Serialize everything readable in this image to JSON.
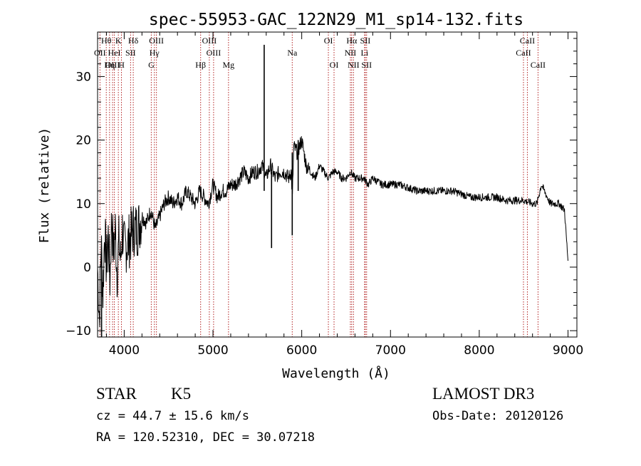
{
  "chart_data": {
    "type": "line",
    "title": "spec-55953-GAC_122N29_M1_sp14-132.fits",
    "xlabel": "Wavelength (Å)",
    "ylabel": "Flux (relative)",
    "xlim": [
      3700,
      9100
    ],
    "ylim": [
      -11,
      37
    ],
    "xticks": [
      4000,
      5000,
      6000,
      7000,
      8000,
      9000
    ],
    "yticks": [
      -10,
      0,
      10,
      20,
      30
    ],
    "grid": false,
    "series": [
      {
        "name": "flux",
        "x": [
          3700,
          3720,
          3740,
          3760,
          3780,
          3800,
          3820,
          3840,
          3860,
          3880,
          3900,
          3920,
          3940,
          3960,
          3980,
          4000,
          4050,
          4100,
          4150,
          4200,
          4250,
          4300,
          4350,
          4400,
          4450,
          4500,
          4550,
          4600,
          4650,
          4700,
          4750,
          4800,
          4850,
          4900,
          4950,
          5000,
          5050,
          5100,
          5150,
          5200,
          5250,
          5300,
          5350,
          5400,
          5450,
          5500,
          5550,
          5580,
          5600,
          5620,
          5650,
          5700,
          5750,
          5800,
          5850,
          5880,
          5895,
          5910,
          5950,
          6000,
          6050,
          6100,
          6150,
          6200,
          6250,
          6300,
          6350,
          6400,
          6450,
          6500,
          6550,
          6600,
          6650,
          6700,
          6750,
          6800,
          6900,
          7000,
          7100,
          7200,
          7300,
          7400,
          7500,
          7600,
          7700,
          7800,
          7900,
          8000,
          8100,
          8200,
          8300,
          8400,
          8500,
          8600,
          8650,
          8700,
          8800,
          8900,
          8960,
          9000
        ],
        "values": [
          0,
          -8,
          4,
          -4,
          6,
          0,
          5,
          -2,
          8,
          2,
          6,
          -1,
          4,
          1,
          6,
          3,
          4,
          6,
          6,
          8,
          7,
          9,
          6,
          8,
          10,
          11,
          10,
          11,
          10,
          12,
          11,
          10,
          12,
          11,
          10,
          13,
          11,
          12,
          12,
          13,
          13,
          14,
          15,
          14,
          15,
          15,
          16,
          15,
          14,
          15,
          16,
          14,
          15,
          15,
          14,
          15,
          11,
          19,
          18,
          20,
          16,
          15,
          14,
          16,
          15,
          14,
          15,
          15,
          14,
          14,
          15,
          14,
          14,
          14,
          13,
          14,
          13,
          13,
          13,
          12.5,
          12,
          12,
          12,
          12,
          12,
          11.5,
          11,
          11,
          11,
          11,
          10.5,
          10.5,
          10.5,
          10,
          10,
          13,
          10,
          10,
          9,
          1
        ]
      }
    ],
    "spikes": [
      {
        "x": 5577,
        "top": 35,
        "bottom": 12
      },
      {
        "x": 5660,
        "top": 15,
        "bottom": 3
      },
      {
        "x": 5893,
        "top": 18,
        "bottom": 5
      },
      {
        "x": 5960,
        "top": 20,
        "bottom": 12
      },
      {
        "x": 3745,
        "top": 2,
        "bottom": -11
      }
    ],
    "line_markers": [
      {
        "label": "Hθ",
        "wavelength": 3798,
        "row": 0
      },
      {
        "label": "OII",
        "wavelength": 3727,
        "row": 1
      },
      {
        "label": "OIII",
        "wavelength": 3869,
        "row": 2
      },
      {
        "label": "Hη",
        "wavelength": 3835,
        "row": 2
      },
      {
        "label": "HeI",
        "wavelength": 3889,
        "row": 1
      },
      {
        "label": "K",
        "wavelength": 3934,
        "row": 0
      },
      {
        "label": "SII",
        "wavelength": 4072,
        "row": 1
      },
      {
        "label": "H",
        "wavelength": 3969,
        "row": 2
      },
      {
        "label": "Hδ",
        "wavelength": 4102,
        "row": 0
      },
      {
        "label": "OIII",
        "wavelength": 4363,
        "row": 0
      },
      {
        "label": "Hγ",
        "wavelength": 4340,
        "row": 1
      },
      {
        "label": "G",
        "wavelength": 4305,
        "row": 2
      },
      {
        "label": "OIII",
        "wavelength": 4959,
        "row": 0
      },
      {
        "label": "OIII",
        "wavelength": 5007,
        "row": 1
      },
      {
        "label": "Hβ",
        "wavelength": 4861,
        "row": 2
      },
      {
        "label": "Mg",
        "wavelength": 5175,
        "row": 2
      },
      {
        "label": "Na",
        "wavelength": 5893,
        "row": 1
      },
      {
        "label": "OI",
        "wavelength": 6300,
        "row": 0
      },
      {
        "label": "OI",
        "wavelength": 6364,
        "row": 2
      },
      {
        "label": "Hα",
        "wavelength": 6563,
        "row": 0
      },
      {
        "label": "NII",
        "wavelength": 6548,
        "row": 1
      },
      {
        "label": "NII",
        "wavelength": 6583,
        "row": 2
      },
      {
        "label": "SII",
        "wavelength": 6716,
        "row": 0
      },
      {
        "label": "Li",
        "wavelength": 6708,
        "row": 1
      },
      {
        "label": "SII",
        "wavelength": 6731,
        "row": 2
      },
      {
        "label": "CaII",
        "wavelength": 8542,
        "row": 0
      },
      {
        "label": "CaII",
        "wavelength": 8498,
        "row": 1
      },
      {
        "label": "CaII",
        "wavelength": 8662,
        "row": 2
      }
    ],
    "marker_colors": {
      "line": "#b22222",
      "frame": "#000000"
    }
  },
  "info": {
    "object_class": "STAR",
    "subclass": "K5",
    "survey": "LAMOST DR3",
    "cz": "cz = 44.7 ± 15.6 km/s",
    "obs_date": "Obs-Date: 20120126",
    "coords": "RA = 120.52310, DEC =  30.07218"
  }
}
